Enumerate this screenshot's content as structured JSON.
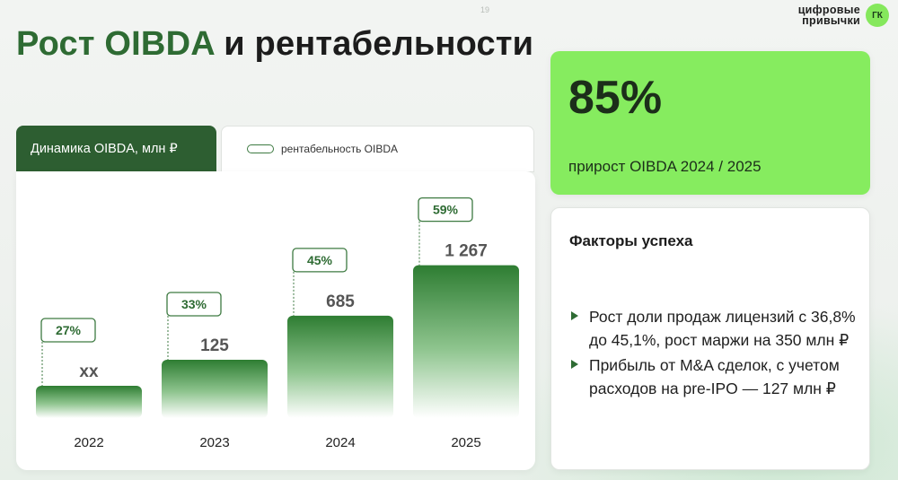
{
  "slide": {
    "page_number": "19",
    "title_accent": "Рост OIBDA",
    "title_rest": " и рентабельности"
  },
  "logo": {
    "line1": "цифровые",
    "line2": "привычки",
    "badge": "ГК"
  },
  "chart_panel": {
    "tab_title": "Динамика OIBDA, млн ₽",
    "legend_label": "рентабельность OIBDA"
  },
  "chart_data": {
    "type": "bar",
    "categories": [
      "2022",
      "2023",
      "2024",
      "2025"
    ],
    "value_labels": [
      "xx",
      "125",
      "685",
      "1 267"
    ],
    "series": [
      {
        "values": [
          null,
          125,
          685,
          1267
        ]
      },
      {
        "name": "рентабельность OIBDA",
        "values": [
          27,
          33,
          45,
          59
        ],
        "labels": [
          "27%",
          "33%",
          "45%",
          "59%"
        ]
      }
    ],
    "colors": {
      "bar_top": "#2e7d32",
      "bar_bottom": "#ffffff",
      "accent": "#2e6b33"
    }
  },
  "kpi": {
    "value": "85%",
    "label": "прирост OIBDA 2024 / 2025"
  },
  "factors": {
    "title": "Факторы успеха",
    "items": [
      "Рост доли продаж лицензий с 36,8% до 45,1%, рост маржи на 350 млн ₽",
      "Прибыль от M&A сделок, с учетом расходов на pre-IPO — 127 млн ₽"
    ]
  }
}
